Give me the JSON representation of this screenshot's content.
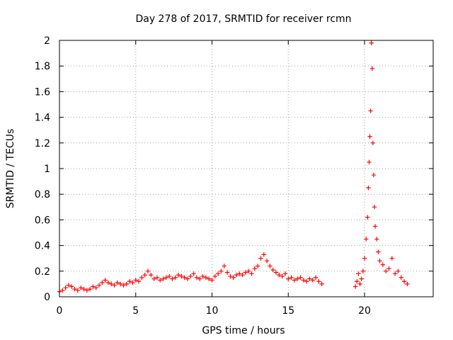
{
  "chart_data": {
    "type": "scatter",
    "title": "Day 278 of 2017, SRMTID for receiver rcmn",
    "xlabel": "GPS time / hours",
    "ylabel": "SRMTID / TECUs",
    "xlim": [
      0,
      24.5
    ],
    "ylim": [
      0,
      2
    ],
    "xticks": [
      0,
      5,
      10,
      15,
      20
    ],
    "xtick_labels": [
      "0",
      "5",
      "10",
      "15",
      "20"
    ],
    "yticks": [
      0,
      0.2,
      0.4,
      0.6,
      0.8,
      1,
      1.2,
      1.4,
      1.6,
      1.8,
      2
    ],
    "ytick_labels": [
      "0",
      "0.2",
      "0.4",
      "0.6",
      "0.8",
      "1",
      "1.2",
      "1.4",
      "1.6",
      "1.8",
      "2"
    ],
    "grid": true,
    "marker": "+",
    "color": "#ff0000",
    "series": [
      {
        "name": "SRMTID",
        "x": [
          0.0,
          0.2,
          0.4,
          0.6,
          0.8,
          1.0,
          1.2,
          1.4,
          1.6,
          1.8,
          2.0,
          2.2,
          2.4,
          2.6,
          2.8,
          3.0,
          3.2,
          3.4,
          3.6,
          3.8,
          4.0,
          4.2,
          4.4,
          4.6,
          4.8,
          5.0,
          5.2,
          5.4,
          5.6,
          5.8,
          6.0,
          6.2,
          6.4,
          6.6,
          6.8,
          7.0,
          7.2,
          7.4,
          7.6,
          7.8,
          8.0,
          8.2,
          8.4,
          8.6,
          8.8,
          9.0,
          9.2,
          9.4,
          9.6,
          9.8,
          10.0,
          10.2,
          10.4,
          10.6,
          10.8,
          11.0,
          11.2,
          11.4,
          11.6,
          11.8,
          12.0,
          12.2,
          12.4,
          12.6,
          12.8,
          13.0,
          13.2,
          13.4,
          13.6,
          13.8,
          14.0,
          14.2,
          14.4,
          14.6,
          14.8,
          15.0,
          15.2,
          15.4,
          15.6,
          15.8,
          16.0,
          16.2,
          16.4,
          16.6,
          16.8,
          17.0,
          17.2,
          19.4,
          19.5,
          19.6,
          19.7,
          19.8,
          19.9,
          20.0,
          20.1,
          20.2,
          20.25,
          20.3,
          20.35,
          20.4,
          20.45,
          20.5,
          20.55,
          20.6,
          20.65,
          20.7,
          20.8,
          20.9,
          21.0,
          21.2,
          21.4,
          21.6,
          21.8,
          22.0,
          22.2,
          22.4,
          22.6,
          22.8
        ],
        "y": [
          0.04,
          0.05,
          0.07,
          0.09,
          0.08,
          0.06,
          0.05,
          0.07,
          0.06,
          0.05,
          0.06,
          0.08,
          0.07,
          0.09,
          0.11,
          0.13,
          0.11,
          0.1,
          0.09,
          0.11,
          0.1,
          0.09,
          0.1,
          0.12,
          0.11,
          0.13,
          0.12,
          0.15,
          0.17,
          0.2,
          0.17,
          0.14,
          0.15,
          0.13,
          0.14,
          0.15,
          0.16,
          0.14,
          0.15,
          0.17,
          0.16,
          0.15,
          0.14,
          0.16,
          0.18,
          0.15,
          0.14,
          0.16,
          0.15,
          0.14,
          0.13,
          0.16,
          0.18,
          0.2,
          0.24,
          0.19,
          0.16,
          0.15,
          0.17,
          0.18,
          0.17,
          0.19,
          0.2,
          0.18,
          0.22,
          0.24,
          0.3,
          0.33,
          0.28,
          0.24,
          0.21,
          0.19,
          0.17,
          0.16,
          0.18,
          0.14,
          0.15,
          0.13,
          0.14,
          0.15,
          0.13,
          0.12,
          0.14,
          0.13,
          0.15,
          0.12,
          0.1,
          0.08,
          0.12,
          0.18,
          0.1,
          0.14,
          0.2,
          0.3,
          0.45,
          0.62,
          0.85,
          1.05,
          1.25,
          1.45,
          1.98,
          1.78,
          1.2,
          0.95,
          0.7,
          0.55,
          0.45,
          0.35,
          0.28,
          0.25,
          0.2,
          0.22,
          0.3,
          0.18,
          0.2,
          0.15,
          0.12,
          0.1
        ]
      }
    ]
  }
}
